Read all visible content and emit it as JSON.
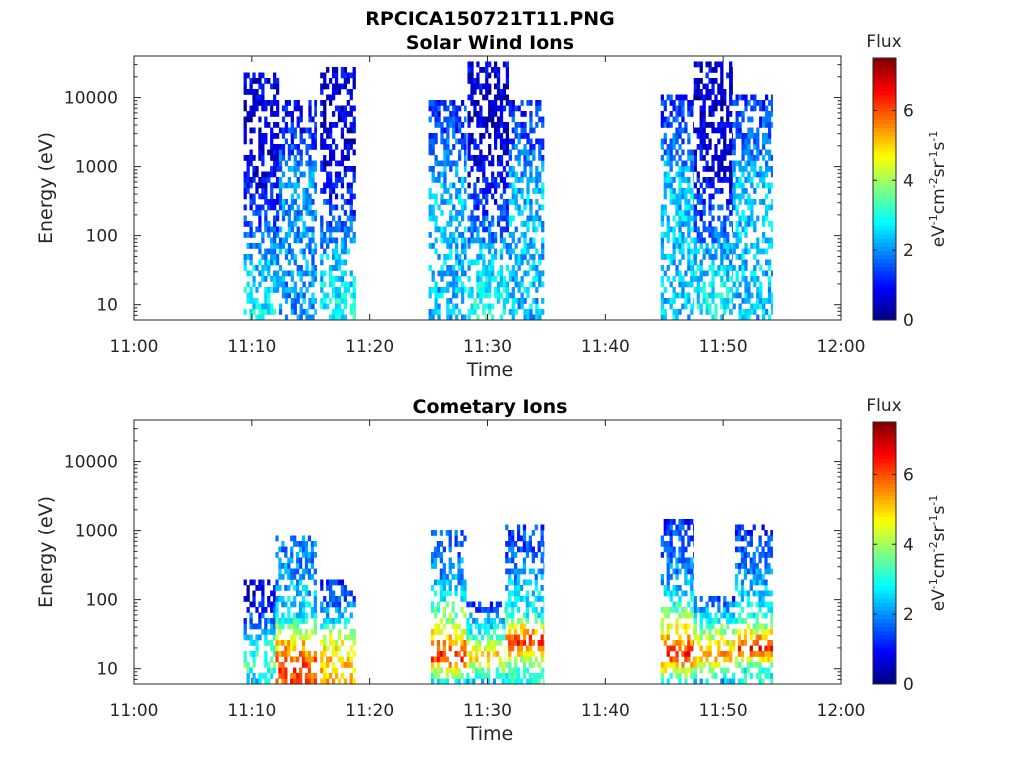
{
  "figure_title": "RPCICA150721T11.PNG",
  "chart_data": [
    {
      "type": "heatmap",
      "title": "Solar Wind Ions",
      "xlabel": "Time",
      "ylabel": "Energy (eV)",
      "x_ticks": [
        "11:00",
        "11:10",
        "11:20",
        "11:30",
        "11:40",
        "11:50",
        "12:00"
      ],
      "xlim_minutes": [
        0,
        60
      ],
      "y_ticks": [
        "10",
        "100",
        "1000",
        "10000"
      ],
      "ylim_eV": [
        6,
        40000
      ],
      "yscale": "log",
      "colorbar": {
        "label": "Flux",
        "unit": "eV-1cm-2sr-1s-1",
        "ticks": [
          "0",
          "2",
          "4",
          "6"
        ],
        "range": [
          0,
          7.5
        ],
        "colormap": "jet"
      },
      "bursts": [
        {
          "start_min": 9.3,
          "end_min": 12.3,
          "flux_by_energy": [
            [
              8,
              2.8
            ],
            [
              20,
              2.6
            ],
            [
              60,
              2.1
            ],
            [
              200,
              1.3
            ],
            [
              1000,
              0.7
            ],
            [
              10000,
              0.6
            ],
            [
              25000,
              0.8
            ]
          ]
        },
        {
          "start_min": 12.3,
          "end_min": 15.5,
          "flux_by_energy": [
            [
              800,
              2.0
            ],
            [
              3000,
              1.2
            ],
            [
              10000,
              0.9
            ]
          ]
        },
        {
          "start_min": 15.8,
          "end_min": 18.8,
          "flux_by_energy": [
            [
              8,
              2.8
            ],
            [
              20,
              2.6
            ],
            [
              60,
              2.2
            ],
            [
              200,
              1.4
            ],
            [
              1000,
              0.7
            ],
            [
              10000,
              0.6
            ],
            [
              30000,
              0.8
            ]
          ]
        },
        {
          "start_min": 25.0,
          "end_min": 28.2,
          "flux_by_energy": [
            [
              500,
              2.3
            ],
            [
              2000,
              1.6
            ],
            [
              10000,
              1.1
            ]
          ]
        },
        {
          "start_min": 28.3,
          "end_min": 31.8,
          "flux_by_energy": [
            [
              8,
              2.9
            ],
            [
              20,
              2.7
            ],
            [
              60,
              2.2
            ],
            [
              200,
              1.4
            ],
            [
              1000,
              0.7
            ],
            [
              10000,
              0.6
            ],
            [
              35000,
              0.8
            ]
          ]
        },
        {
          "start_min": 31.8,
          "end_min": 34.8,
          "flux_by_energy": [
            [
              500,
              2.3
            ],
            [
              2000,
              1.6
            ],
            [
              10000,
              1.1
            ]
          ]
        },
        {
          "start_min": 44.7,
          "end_min": 47.5,
          "flux_by_energy": [
            [
              500,
              2.4
            ],
            [
              2000,
              1.7
            ],
            [
              12000,
              1.1
            ]
          ]
        },
        {
          "start_min": 47.5,
          "end_min": 50.8,
          "flux_by_energy": [
            [
              8,
              2.9
            ],
            [
              20,
              2.7
            ],
            [
              60,
              2.2
            ],
            [
              200,
              1.4
            ],
            [
              1000,
              0.7
            ],
            [
              10000,
              0.6
            ],
            [
              35000,
              0.8
            ]
          ]
        },
        {
          "start_min": 50.8,
          "end_min": 54.2,
          "flux_by_energy": [
            [
              500,
              2.4
            ],
            [
              2000,
              1.8
            ],
            [
              12000,
              1.2
            ]
          ]
        }
      ]
    },
    {
      "type": "heatmap",
      "title": "Cometary Ions",
      "xlabel": "Time",
      "ylabel": "Energy (eV)",
      "x_ticks": [
        "11:00",
        "11:10",
        "11:20",
        "11:30",
        "11:40",
        "11:50",
        "12:00"
      ],
      "xlim_minutes": [
        0,
        60
      ],
      "y_ticks": [
        "10",
        "100",
        "1000",
        "10000"
      ],
      "ylim_eV": [
        6,
        40000
      ],
      "yscale": "log",
      "colorbar": {
        "label": "Flux",
        "unit": "eV-1cm-2sr-1s-1",
        "ticks": [
          "0",
          "2",
          "4",
          "6"
        ],
        "range": [
          0,
          7.5
        ],
        "colormap": "jet"
      },
      "bursts": [
        {
          "start_min": 9.3,
          "end_min": 12.0,
          "flux_by_energy": [
            [
              7,
              2.6
            ],
            [
              12,
              3.5
            ],
            [
              30,
              2.4
            ],
            [
              80,
              1.0
            ],
            [
              200,
              0.6
            ]
          ]
        },
        {
          "start_min": 12.0,
          "end_min": 15.5,
          "flux_by_energy": [
            [
              12,
              6.0
            ],
            [
              25,
              5.0
            ],
            [
              60,
              2.6
            ],
            [
              200,
              2.0
            ],
            [
              900,
              1.8
            ]
          ]
        },
        {
          "start_min": 15.8,
          "end_min": 18.8,
          "flux_by_energy": [
            [
              12,
              5.2
            ],
            [
              25,
              4.4
            ],
            [
              60,
              2.2
            ],
            [
              200,
              1.0
            ]
          ]
        },
        {
          "start_min": 25.2,
          "end_min": 28.2,
          "flux_by_energy": [
            [
              7,
              3.0
            ],
            [
              15,
              6.5
            ],
            [
              35,
              4.6
            ],
            [
              150,
              2.3
            ],
            [
              1000,
              1.5
            ]
          ]
        },
        {
          "start_min": 28.2,
          "end_min": 31.5,
          "flux_by_energy": [
            [
              7,
              2.6
            ],
            [
              15,
              5.0
            ],
            [
              40,
              2.6
            ],
            [
              100,
              1.0
            ]
          ]
        },
        {
          "start_min": 31.5,
          "end_min": 34.8,
          "flux_by_energy": [
            [
              10,
              3.2
            ],
            [
              25,
              6.5
            ],
            [
              60,
              3.0
            ],
            [
              300,
              1.8
            ],
            [
              1300,
              1.2
            ]
          ]
        },
        {
          "start_min": 44.7,
          "end_min": 47.5,
          "flux_by_energy": [
            [
              7,
              3.0
            ],
            [
              15,
              6.5
            ],
            [
              40,
              4.5
            ],
            [
              150,
              2.2
            ],
            [
              1500,
              1.2
            ]
          ]
        },
        {
          "start_min": 47.5,
          "end_min": 51.0,
          "flux_by_energy": [
            [
              7,
              2.6
            ],
            [
              15,
              5.6
            ],
            [
              40,
              3.5
            ],
            [
              120,
              1.1
            ]
          ]
        },
        {
          "start_min": 51.0,
          "end_min": 54.2,
          "flux_by_energy": [
            [
              10,
              3.0
            ],
            [
              20,
              6.5
            ],
            [
              50,
              3.2
            ],
            [
              300,
              1.8
            ],
            [
              1300,
              1.2
            ]
          ]
        }
      ]
    }
  ]
}
